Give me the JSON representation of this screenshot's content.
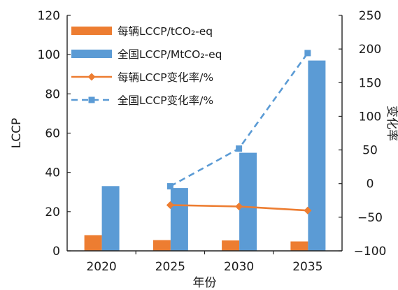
{
  "chart_data": {
    "type": "bar",
    "categories": [
      "2020",
      "2025",
      "2030",
      "2035"
    ],
    "xlabel": "年份",
    "ylabel": "LCCP",
    "y2label": "变化率",
    "ylim": [
      0,
      120
    ],
    "yticks": [
      0,
      20,
      40,
      60,
      80,
      100,
      120
    ],
    "y2lim": [
      -100,
      250
    ],
    "y2ticks": [
      -100,
      -50,
      0,
      50,
      100,
      150,
      200,
      250
    ],
    "grid": false,
    "legend_position": "top-left",
    "series": [
      {
        "name": "每辆LCCP/tCO₂-eq",
        "type": "bar",
        "axis": "left",
        "color": "#ED7D31",
        "values": [
          8,
          5.5,
          5.3,
          4.8
        ]
      },
      {
        "name": "全国LCCP/MtCO₂-eq",
        "type": "bar",
        "axis": "left",
        "color": "#5B9BD5",
        "values": [
          33,
          32,
          50,
          97
        ]
      },
      {
        "name": "每辆LCCP变化率/%",
        "type": "line",
        "axis": "right",
        "color": "#ED7D31",
        "marker": "diamond",
        "dash": "solid",
        "x": [
          "2025",
          "2030",
          "2035"
        ],
        "values": [
          -32,
          -34,
          -40
        ]
      },
      {
        "name": "全国LCCP变化率/%",
        "type": "line",
        "axis": "right",
        "color": "#5B9BD5",
        "marker": "square",
        "dash": "dashed",
        "x": [
          "2025",
          "2030",
          "2035"
        ],
        "values": [
          -4,
          52,
          194
        ]
      }
    ]
  }
}
